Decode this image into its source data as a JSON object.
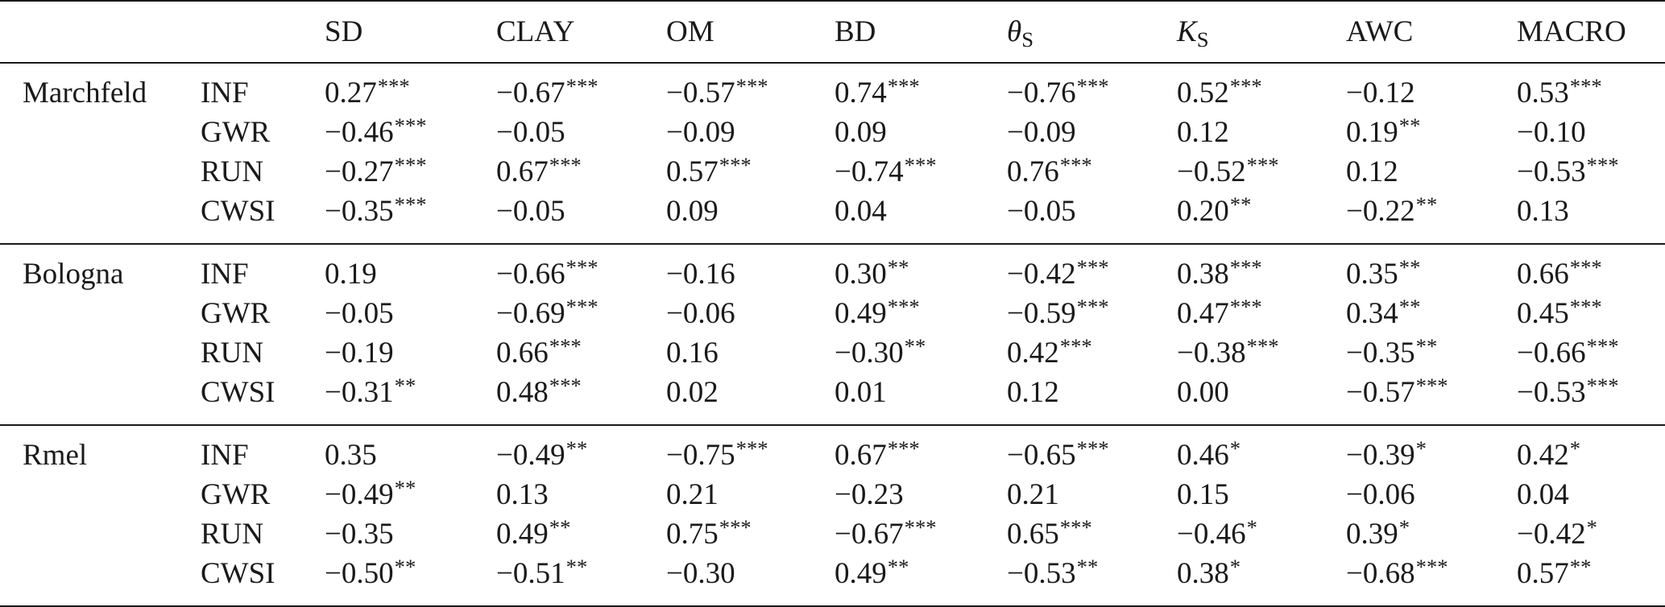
{
  "header": [
    {
      "main": "SD",
      "sub": "",
      "italic": false
    },
    {
      "main": "CLAY",
      "sub": "",
      "italic": false
    },
    {
      "main": "OM",
      "sub": "",
      "italic": false
    },
    {
      "main": "BD",
      "sub": "",
      "italic": false
    },
    {
      "main": "θ",
      "sub": "S",
      "italic": true
    },
    {
      "main": "K",
      "sub": "S",
      "italic": true
    },
    {
      "main": "AWC",
      "sub": "",
      "italic": false
    },
    {
      "main": "MACRO",
      "sub": "",
      "italic": false
    }
  ],
  "groups": [
    {
      "site": "Marchfeld",
      "rows": [
        {
          "var": "INF",
          "cells": [
            {
              "v": "0.27",
              "s": "***"
            },
            {
              "v": "−0.67",
              "s": "***"
            },
            {
              "v": "−0.57",
              "s": "***"
            },
            {
              "v": "0.74",
              "s": "***"
            },
            {
              "v": "−0.76",
              "s": "***"
            },
            {
              "v": "0.52",
              "s": "***"
            },
            {
              "v": "−0.12",
              "s": ""
            },
            {
              "v": "0.53",
              "s": "***"
            }
          ]
        },
        {
          "var": "GWR",
          "cells": [
            {
              "v": "−0.46",
              "s": "***"
            },
            {
              "v": "−0.05",
              "s": ""
            },
            {
              "v": "−0.09",
              "s": ""
            },
            {
              "v": "0.09",
              "s": ""
            },
            {
              "v": "−0.09",
              "s": ""
            },
            {
              "v": "0.12",
              "s": ""
            },
            {
              "v": "0.19",
              "s": "**"
            },
            {
              "v": "−0.10",
              "s": ""
            }
          ]
        },
        {
          "var": "RUN",
          "cells": [
            {
              "v": "−0.27",
              "s": "***"
            },
            {
              "v": "0.67",
              "s": "***"
            },
            {
              "v": "0.57",
              "s": "***"
            },
            {
              "v": "−0.74",
              "s": "***"
            },
            {
              "v": "0.76",
              "s": "***"
            },
            {
              "v": "−0.52",
              "s": "***"
            },
            {
              "v": "0.12",
              "s": ""
            },
            {
              "v": "−0.53",
              "s": "***"
            }
          ]
        },
        {
          "var": "CWSI",
          "cells": [
            {
              "v": "−0.35",
              "s": "***"
            },
            {
              "v": "−0.05",
              "s": ""
            },
            {
              "v": "0.09",
              "s": ""
            },
            {
              "v": "0.04",
              "s": ""
            },
            {
              "v": "−0.05",
              "s": ""
            },
            {
              "v": "0.20",
              "s": "**"
            },
            {
              "v": "−0.22",
              "s": "**"
            },
            {
              "v": "0.13",
              "s": ""
            }
          ]
        }
      ]
    },
    {
      "site": "Bologna",
      "rows": [
        {
          "var": "INF",
          "cells": [
            {
              "v": "0.19",
              "s": ""
            },
            {
              "v": "−0.66",
              "s": "***"
            },
            {
              "v": "−0.16",
              "s": ""
            },
            {
              "v": "0.30",
              "s": "**"
            },
            {
              "v": "−0.42",
              "s": "***"
            },
            {
              "v": "0.38",
              "s": "***"
            },
            {
              "v": "0.35",
              "s": "**"
            },
            {
              "v": "0.66",
              "s": "***"
            }
          ]
        },
        {
          "var": "GWR",
          "cells": [
            {
              "v": "−0.05",
              "s": ""
            },
            {
              "v": "−0.69",
              "s": "***"
            },
            {
              "v": "−0.06",
              "s": ""
            },
            {
              "v": "0.49",
              "s": "***"
            },
            {
              "v": "−0.59",
              "s": "***"
            },
            {
              "v": "0.47",
              "s": "***"
            },
            {
              "v": "0.34",
              "s": "**"
            },
            {
              "v": "0.45",
              "s": "***"
            }
          ]
        },
        {
          "var": "RUN",
          "cells": [
            {
              "v": "−0.19",
              "s": ""
            },
            {
              "v": "0.66",
              "s": "***"
            },
            {
              "v": "0.16",
              "s": ""
            },
            {
              "v": "−0.30",
              "s": "**"
            },
            {
              "v": "0.42",
              "s": "***"
            },
            {
              "v": "−0.38",
              "s": "***"
            },
            {
              "v": "−0.35",
              "s": "**"
            },
            {
              "v": "−0.66",
              "s": "***"
            }
          ]
        },
        {
          "var": "CWSI",
          "cells": [
            {
              "v": "−0.31",
              "s": "**"
            },
            {
              "v": "0.48",
              "s": "***"
            },
            {
              "v": "0.02",
              "s": ""
            },
            {
              "v": "0.01",
              "s": ""
            },
            {
              "v": "0.12",
              "s": ""
            },
            {
              "v": "0.00",
              "s": ""
            },
            {
              "v": "−0.57",
              "s": "***"
            },
            {
              "v": "−0.53",
              "s": "***"
            }
          ]
        }
      ]
    },
    {
      "site": "Rmel",
      "rows": [
        {
          "var": "INF",
          "cells": [
            {
              "v": "0.35",
              "s": ""
            },
            {
              "v": "−0.49",
              "s": "**"
            },
            {
              "v": "−0.75",
              "s": "***"
            },
            {
              "v": "0.67",
              "s": "***"
            },
            {
              "v": "−0.65",
              "s": "***"
            },
            {
              "v": "0.46",
              "s": "*"
            },
            {
              "v": "−0.39",
              "s": "*"
            },
            {
              "v": "0.42",
              "s": "*"
            }
          ]
        },
        {
          "var": "GWR",
          "cells": [
            {
              "v": "−0.49",
              "s": "**"
            },
            {
              "v": "0.13",
              "s": ""
            },
            {
              "v": "0.21",
              "s": ""
            },
            {
              "v": "−0.23",
              "s": ""
            },
            {
              "v": "0.21",
              "s": ""
            },
            {
              "v": "0.15",
              "s": ""
            },
            {
              "v": "−0.06",
              "s": ""
            },
            {
              "v": "0.04",
              "s": ""
            }
          ]
        },
        {
          "var": "RUN",
          "cells": [
            {
              "v": "−0.35",
              "s": ""
            },
            {
              "v": "0.49",
              "s": "**"
            },
            {
              "v": "0.75",
              "s": "***"
            },
            {
              "v": "−0.67",
              "s": "***"
            },
            {
              "v": "0.65",
              "s": "***"
            },
            {
              "v": "−0.46",
              "s": "*"
            },
            {
              "v": "0.39",
              "s": "*"
            },
            {
              "v": "−0.42",
              "s": "*"
            }
          ]
        },
        {
          "var": "CWSI",
          "cells": [
            {
              "v": "−0.50",
              "s": "**"
            },
            {
              "v": "−0.51",
              "s": "**"
            },
            {
              "v": "−0.30",
              "s": ""
            },
            {
              "v": "0.49",
              "s": "**"
            },
            {
              "v": "−0.53",
              "s": "**"
            },
            {
              "v": "0.38",
              "s": "*"
            },
            {
              "v": "−0.68",
              "s": "***"
            },
            {
              "v": "0.57",
              "s": "**"
            }
          ]
        }
      ]
    }
  ]
}
